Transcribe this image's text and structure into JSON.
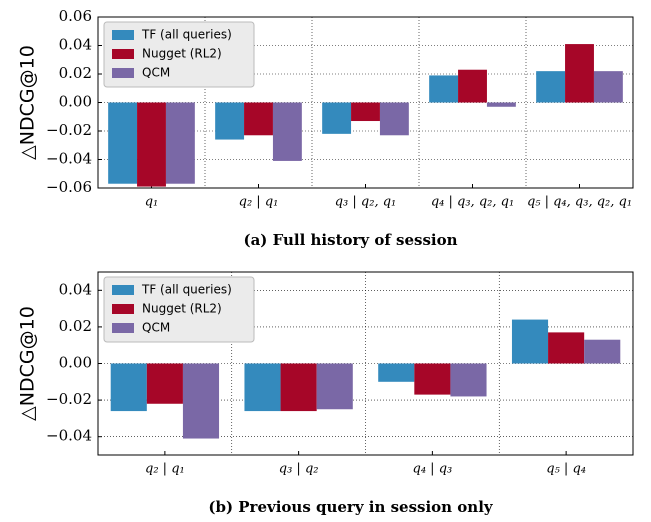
{
  "chart_data": [
    {
      "type": "bar",
      "caption": "(a) Full history of session",
      "y_label": "△NDCG@10",
      "categories": [
        "q₁",
        "q₂ | q₁",
        "q₃ | q₂, q₁",
        "q₄ | q₃, q₂, q₁",
        "q₅ | q₄, q₃, q₂, q₁"
      ],
      "series": [
        {
          "name": "TF (all queries)",
          "color": "#348abd",
          "values": [
            -0.057,
            -0.026,
            -0.022,
            0.019,
            0.022
          ]
        },
        {
          "name": "Nugget (RL2)",
          "color": "#a60628",
          "values": [
            -0.059,
            -0.023,
            -0.013,
            0.023,
            0.041
          ]
        },
        {
          "name": "QCM",
          "color": "#7a68a6",
          "values": [
            -0.057,
            -0.041,
            -0.023,
            -0.003,
            0.022
          ]
        }
      ],
      "ylim": [
        -0.06,
        0.06
      ],
      "yticks": [
        {
          "value": -0.06,
          "label": "−0.06"
        },
        {
          "value": -0.04,
          "label": "−0.04"
        },
        {
          "value": -0.02,
          "label": "−0.02"
        },
        {
          "value": 0,
          "label": "0.00"
        },
        0.02,
        0.04,
        0.06
      ],
      "grid": true,
      "legend": "upper left"
    },
    {
      "type": "bar",
      "caption": "(b) Previous query in session only",
      "y_label": "△NDCG@10",
      "categories": [
        "q₂ | q₁",
        "q₃ | q₂",
        "q₄ | q₃",
        "q₅ | q₄"
      ],
      "series": [
        {
          "name": "TF (all queries)",
          "color": "#348abd",
          "values": [
            -0.026,
            -0.026,
            -0.01,
            0.024
          ]
        },
        {
          "name": "Nugget (RL2)",
          "color": "#a60628",
          "values": [
            -0.022,
            -0.026,
            -0.017,
            0.017
          ]
        },
        {
          "name": "QCM",
          "color": "#7a68a6",
          "values": [
            -0.041,
            -0.025,
            -0.018,
            0.013
          ]
        }
      ],
      "ylim": [
        -0.05,
        0.05
      ],
      "yticks": [
        {
          "value": -0.04,
          "label": "−0.04"
        },
        {
          "value": -0.02,
          "label": "−0.02"
        },
        {
          "value": 0,
          "label": "0.00"
        },
        0.02,
        0.04
      ],
      "grid": true,
      "legend": "upper left"
    }
  ]
}
